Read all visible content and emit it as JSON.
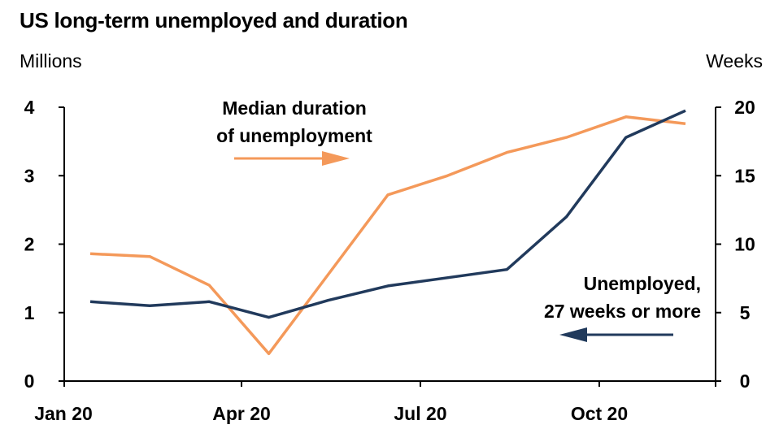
{
  "chart_data": {
    "type": "line",
    "title": "US long-term unemployed and duration",
    "left_axis_label": "Millions",
    "right_axis_label": "Weeks",
    "left_ylim": [
      0,
      4
    ],
    "right_ylim": [
      0,
      20
    ],
    "left_ticks": [
      "0",
      "1",
      "2",
      "3",
      "4"
    ],
    "right_ticks": [
      "0",
      "5",
      "10",
      "15",
      "20"
    ],
    "x_tick_labels": [
      "Jan 20",
      "Apr 20",
      "Jul 20",
      "Oct 20"
    ],
    "x": [
      "Jan 20",
      "Feb 20",
      "Mar 20",
      "Apr 20",
      "May 20",
      "Jun 20",
      "Jul 20",
      "Aug 20",
      "Sep 20",
      "Oct 20",
      "Nov 20"
    ],
    "series": [
      {
        "name": "Median duration of unemployment",
        "axis": "right",
        "color": "#f4995a",
        "values": [
          9.3,
          9.1,
          7.0,
          2.0,
          null,
          13.6,
          15.0,
          16.7,
          17.8,
          19.3,
          18.8
        ]
      },
      {
        "name": "Unemployed, 27 weeks or more",
        "axis": "left",
        "color": "#213a5c",
        "values": [
          1.16,
          1.1,
          1.16,
          0.93,
          1.18,
          1.39,
          1.51,
          1.63,
          2.4,
          3.56,
          3.95
        ]
      }
    ],
    "annotations": {
      "median_line1": "Median duration",
      "median_line2": "of unemployment",
      "unemployed_line1": "Unemployed,",
      "unemployed_line2": "27 weeks or more"
    },
    "grid": false,
    "legend": "inline annotations with arrows"
  }
}
